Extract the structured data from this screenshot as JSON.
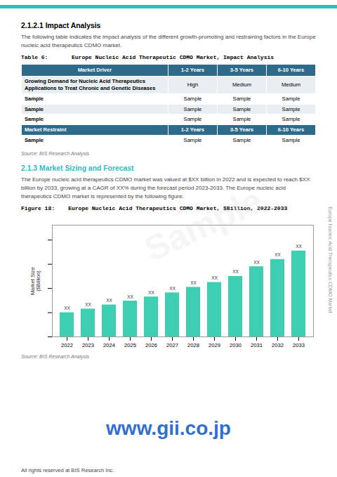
{
  "chart_data": {
    "type": "bar",
    "title": "Figure 18:    Europe Nucleic Acid Therapeutics CDMO Market, $Billion, 2022-2033",
    "ylabel": "Market Size\n($Billion)",
    "categories": [
      "2022",
      "2023",
      "2024",
      "2025",
      "2026",
      "2027",
      "2028",
      "2029",
      "2030",
      "2031",
      "2032",
      "2033"
    ],
    "values": [
      1.0,
      1.15,
      1.32,
      1.48,
      1.65,
      1.82,
      2.05,
      2.25,
      2.5,
      2.9,
      3.2,
      3.55
    ],
    "value_labels": [
      "XX",
      "XX",
      "XX",
      "XX",
      "XX",
      "XX",
      "XX",
      "XX",
      "XX",
      "XX",
      "XX",
      "XX"
    ],
    "data_labels": true,
    "color": "#3ecfb2",
    "ylim": [
      0,
      4.615
    ],
    "yticks": [
      0,
      1,
      2,
      3,
      4
    ],
    "tick_labels": "x",
    "grid": false
  },
  "page": {
    "top_bar_color": "#2abfbf",
    "section_title_1": "2.1.2.1 Impact Analysis",
    "para_1": "The following table indicates the impact analysis of the different growth-promoting and restraining factors in the Europe nucleic acid therapeutics CDMO market.",
    "table_caption": "Table 6:       Europe Nucleic Acid Therapeutic CDMO Market, Impact Analysis",
    "table_headers": [
      "Market Driver",
      "1-2 Years",
      "3-5 Years",
      "6-10 Years"
    ],
    "table_rows": [
      [
        "Growing Demand for Nucleic Acid Therapeutics\nApplications to Treat Chronic and Genetic Diseases",
        "High",
        "Medium",
        "Medium"
      ],
      [
        "Sample",
        "Sample",
        "Sample",
        "Sample"
      ],
      [
        "Sample",
        "Sample",
        "Sample",
        "Sample"
      ],
      [
        "Sample",
        "Sample",
        "Sample",
        "Sample"
      ],
      [
        "Market Restraint",
        "1-2 Years",
        "3-5 Years",
        "6-10 Years"
      ],
      [
        "Sample",
        "Sample",
        "Sample",
        "Sample"
      ]
    ],
    "row_is_subheader": [
      false,
      false,
      false,
      false,
      true,
      false
    ],
    "row_bold_col0": [
      true,
      true,
      true,
      true,
      false,
      true
    ],
    "table_header_color": "#2e6b8a",
    "table_row_shade": "#e8eef2",
    "source_text_1": "Source: BIS Research Analysis",
    "section_title_2": "2.1.3 Market Sizing and Forecast",
    "section_title_2_color": "#2abfbf",
    "para_2": "The Europe nucleic acid therapeutics CDMO market was valued at $XX billion in 2022 and is expected to reach $XX billion by 2033, growing at a CAGR of XX% during the forecast period 2023-2033.  The Europe nucleic acid therapeutics CDMO market is represented by the following figure:",
    "source_text_2": "Source: BIS Research Analysis",
    "side_text": "Europe Nucleic Acid Therapeutics CDMO Market",
    "watermark_text": "www.gii.co.jp",
    "watermark_color": "#1a5fcc",
    "footer_text": "All rights reserved at BIS Research Inc.",
    "sample_watermark": "Sample"
  }
}
